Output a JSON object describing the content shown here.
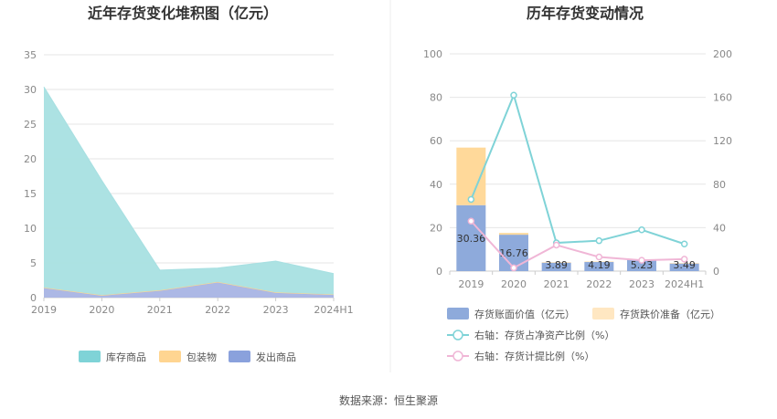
{
  "source": "数据来源：恒生聚源",
  "chart_data": [
    {
      "type": "area",
      "title": "近年存货变化堆积图（亿元）",
      "categories": [
        "2019",
        "2020",
        "2021",
        "2022",
        "2023",
        "2024H1"
      ],
      "ylim": [
        0,
        35
      ],
      "yticks": [
        0,
        5,
        10,
        15,
        20,
        25,
        30,
        35
      ],
      "stacked": true,
      "grid": true,
      "legend_position": "bottom",
      "series": [
        {
          "name": "库存商品",
          "color": "#a8e0e2",
          "legend_color": "#7fd3d7",
          "values": [
            28.9,
            16.5,
            2.9,
            2.0,
            4.5,
            3.0
          ]
        },
        {
          "name": "包装物",
          "color": "#ffd591",
          "legend_color": "#ffd591",
          "values": [
            0.05,
            0.05,
            0.05,
            0.05,
            0.05,
            0.05
          ]
        },
        {
          "name": "发出商品",
          "color": "#a8b4e4",
          "legend_color": "#8aa1dc",
          "values": [
            1.4,
            0.3,
            1.0,
            2.2,
            0.7,
            0.4
          ]
        }
      ]
    },
    {
      "type": "bar",
      "title": "历年存货变动情况",
      "categories": [
        "2019",
        "2020",
        "2021",
        "2022",
        "2023",
        "2024H1"
      ],
      "ylim_left": [
        0,
        100
      ],
      "yticks_left": [
        0,
        20,
        40,
        60,
        80,
        100
      ],
      "ylim_right": [
        0,
        200
      ],
      "yticks_right": [
        0,
        40,
        80,
        120,
        160,
        200
      ],
      "grid": true,
      "legend_position": "bottom",
      "bars": [
        {
          "name": "存货账面价值（亿元）",
          "color": "#8eaadb",
          "values": [
            30.36,
            16.76,
            3.89,
            4.19,
            5.23,
            3.49
          ],
          "labels": [
            "30.36",
            "16.76",
            "3.89",
            "4.19",
            "5.23",
            "3.49"
          ]
        },
        {
          "name": "存货跌价准备（亿元）",
          "color": "#ffd99a",
          "legend_color": "#ffe7c2",
          "values": [
            26.5,
            0.8,
            0.2,
            0.2,
            0.2,
            0.2
          ]
        }
      ],
      "lines": [
        {
          "name": "右轴：存货占净资产比例（%）",
          "color": "#7fd3d7",
          "axis": "right",
          "values": [
            66,
            162,
            26,
            28,
            38,
            25
          ]
        },
        {
          "name": "右轴：存货计提比例（%）",
          "color": "#f0b6d6",
          "axis": "right",
          "values": [
            46,
            3,
            24,
            13,
            10,
            11
          ]
        }
      ]
    }
  ]
}
